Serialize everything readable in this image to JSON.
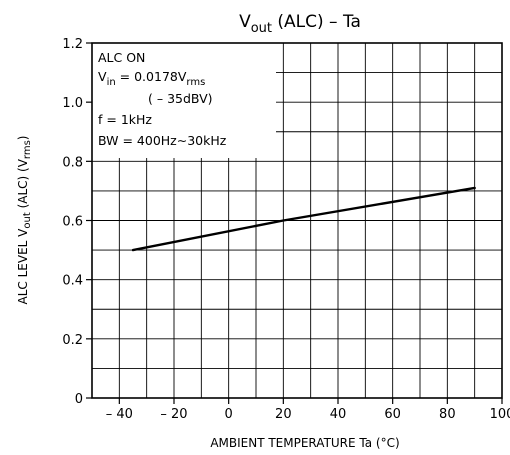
{
  "chart_data": {
    "type": "line",
    "title": {
      "main": "V",
      "sub": "out",
      "rest": " (ALC)   –  Ta"
    },
    "xlabel": "AMBIENT TEMPERATURE    Ta    (°C)",
    "ylabel": {
      "part1": "ALC LEVEL    V",
      "sub1": "out",
      "part2": " (ALC)    (V",
      "sub2": "rms",
      "part3": ")"
    },
    "xlim": [
      -50,
      100
    ],
    "ylim": [
      0,
      1.2
    ],
    "x_ticks": [
      -40,
      -20,
      0,
      20,
      40,
      60,
      80,
      100
    ],
    "x_tick_labels": [
      "– 40",
      "– 20",
      "0",
      "20",
      "40",
      "60",
      "80",
      "100"
    ],
    "y_ticks": [
      0,
      0.2,
      0.4,
      0.6,
      0.8,
      1.0,
      1.2
    ],
    "y_tick_labels": [
      "0",
      "0.2",
      "0.4",
      "0.6",
      "0.8",
      "1.0",
      "1.2"
    ],
    "grid": true,
    "x_minor_step": 10,
    "y_minor_step": 0.1,
    "series": [
      {
        "x": [
          -35,
          20,
          90
        ],
        "y": [
          0.5,
          0.6,
          0.71
        ]
      }
    ],
    "annotations": {
      "line1": "ALC ON",
      "line2": {
        "pre": "V",
        "sub": "in",
        "mid": " = 0.0178V",
        "sub2": "rms"
      },
      "line3": "( – 35dBV)",
      "line4": "f = 1kHz",
      "line5": "BW = 400Hz∼30kHz"
    },
    "colors": {
      "line": "#000000",
      "grid": "#000000"
    }
  }
}
